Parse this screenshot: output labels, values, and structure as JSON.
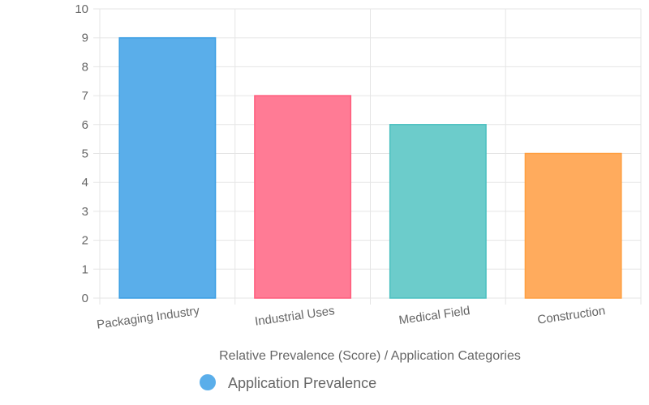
{
  "chart_data": {
    "type": "bar",
    "categories": [
      "Packaging Industry",
      "Industrial Uses",
      "Medical Field",
      "Construction"
    ],
    "series": [
      {
        "name": "Application Prevalence",
        "values": [
          9,
          7,
          6,
          5
        ],
        "colors": [
          "#5aaeea",
          "#ff7b95",
          "#6ccccb",
          "#ffab5d"
        ],
        "border_colors": [
          "#3a9ee4",
          "#ff5c7c",
          "#4bc0c0",
          "#ff9f40"
        ]
      }
    ],
    "xlabel": "Relative Prevalence (Score) / Application Categories",
    "ylabel": "",
    "ylim": [
      0,
      10
    ],
    "yticks": [
      "0",
      "1",
      "2",
      "3",
      "4",
      "5",
      "6",
      "7",
      "8",
      "9",
      "10"
    ],
    "grid": true,
    "legend": "bottom",
    "legend_color": "#5aaeea"
  }
}
